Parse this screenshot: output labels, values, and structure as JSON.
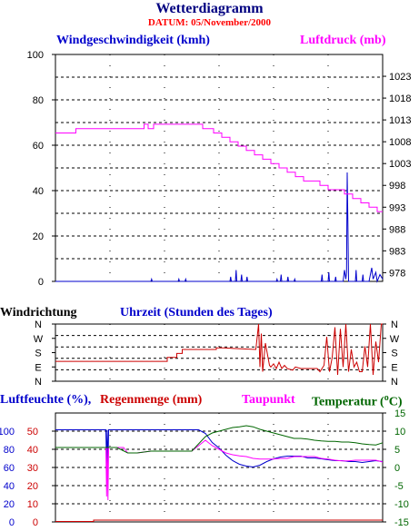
{
  "title": "Wetterdiagramm",
  "date_label": "DATUM: 05/November/2000",
  "chart_data": [
    {
      "type": "line",
      "name": "top",
      "left_label": "Windgeschwindigkeit (kmh)",
      "right_label": "Luftdruck (mb)",
      "left_ticks": [
        "100",
        "80",
        "60",
        "40",
        "20",
        "0"
      ],
      "right_ticks": [
        "1023",
        "1018",
        "1013",
        "1008",
        "1003",
        "998",
        "993",
        "988",
        "983",
        "978"
      ],
      "xlim": [
        0,
        24
      ],
      "ylim_left": [
        0,
        100
      ],
      "ylim_right": [
        976,
        1028
      ],
      "grid": true,
      "colors": {
        "left": "#0000cc",
        "right": "#ff00ff"
      },
      "series": [
        {
          "axis": "left",
          "color": "#0000cc",
          "x": [
            0,
            7,
            7.05,
            7.1,
            9,
            9.05,
            9.1,
            9.5,
            9.55,
            9.6,
            12.8,
            12.85,
            12.9,
            13.2,
            13.25,
            13.3,
            13.6,
            13.65,
            13.7,
            14,
            14.05,
            14.1,
            16.2,
            16.25,
            16.3,
            16.5,
            16.55,
            16.6,
            17,
            17.05,
            17.1,
            17.5,
            17.55,
            17.6,
            19.5,
            19.55,
            19.6,
            20,
            20.05,
            20.1,
            20.5,
            20.55,
            20.6,
            21.1,
            21.2,
            21.3,
            21.35,
            21.4,
            21.45,
            21.5,
            22,
            22.05,
            22.1,
            22.5,
            22.55,
            22.6,
            23,
            23.2,
            23.3,
            23.5,
            23.6,
            23.8,
            24
          ],
          "y": [
            0,
            0,
            1,
            0,
            0,
            1,
            0,
            0,
            1,
            0,
            0,
            2,
            0,
            0,
            5,
            0,
            0,
            3,
            0,
            0,
            2,
            0,
            0,
            1,
            0,
            0,
            3,
            0,
            0,
            2,
            0,
            0,
            1,
            0,
            0,
            3,
            0,
            0,
            4,
            0,
            0,
            2,
            0,
            0,
            5,
            1,
            4,
            48,
            25,
            0,
            0,
            5,
            0,
            0,
            3,
            0,
            0,
            6,
            1,
            4,
            0,
            3,
            1
          ]
        },
        {
          "axis": "right",
          "color": "#ff00ff",
          "x": [
            0,
            1.5,
            1.5,
            6.5,
            6.5,
            6.8,
            6.8,
            7.2,
            7.2,
            10.8,
            10.8,
            11.6,
            11.6,
            12.2,
            12.2,
            12.8,
            12.8,
            13.4,
            13.4,
            14,
            14,
            14.6,
            14.6,
            15.2,
            15.2,
            15.8,
            15.8,
            16.4,
            16.4,
            17,
            17,
            17.6,
            17.6,
            18.2,
            18.2,
            18.8,
            18.8,
            19.4,
            19.4,
            20,
            20,
            20.6,
            20.6,
            21.2,
            21.2,
            21.8,
            21.8,
            22.4,
            22.4,
            23,
            23,
            23.6,
            23.6,
            24
          ],
          "y": [
            1010,
            1010,
            1011,
            1011,
            1012,
            1012,
            1011,
            1011,
            1012,
            1012,
            1011,
            1011,
            1010,
            1010,
            1009,
            1009,
            1008,
            1008,
            1007,
            1007,
            1006,
            1006,
            1005,
            1005,
            1004,
            1004,
            1003,
            1003,
            1002,
            1002,
            1001,
            1001,
            1000,
            1000,
            999,
            999,
            999,
            999,
            998,
            998,
            997,
            997,
            997,
            997,
            996,
            996,
            995,
            995,
            994,
            994,
            993,
            993,
            992,
            992
          ]
        }
      ]
    },
    {
      "type": "line",
      "name": "middle",
      "left_label": "Windrichtung",
      "center_label": "Uhrzeit (Stunden des Tages)",
      "left_ticks": [
        "N",
        "W",
        "S",
        "E",
        "N"
      ],
      "right_ticks": [
        "N",
        "W",
        "S",
        "E",
        "N"
      ],
      "xlim": [
        0,
        24
      ],
      "ylim": [
        0,
        360
      ],
      "grid": true,
      "series": [
        {
          "color": "#cc0000",
          "x": [
            0,
            8.2,
            8.2,
            8.9,
            8.9,
            9.3,
            9.3,
            11.8,
            11.8,
            12.3,
            12.3,
            14.7,
            14.9,
            15.0,
            15.1,
            15.2,
            15.4,
            15.7,
            15.8,
            16.0,
            16.2,
            16.4,
            16.6,
            16.8,
            17.0,
            17.4,
            17.6,
            18.0,
            19.2,
            19.4,
            19.7,
            19.9,
            20.1,
            20.3,
            20.5,
            20.7,
            20.9,
            21.1,
            21.3,
            21.5,
            21.7,
            21.9,
            22.1,
            22.3,
            22.5,
            22.7,
            22.9,
            23.1,
            23.3,
            23.5,
            23.7,
            23.9,
            24
          ],
          "y": [
            125,
            125,
            150,
            150,
            175,
            175,
            200,
            200,
            210,
            210,
            210,
            200,
            360,
            90,
            300,
            60,
            240,
            100,
            90,
            110,
            80,
            120,
            80,
            100,
            80,
            70,
            90,
            80,
            80,
            60,
            100,
            280,
            60,
            150,
            340,
            40,
            330,
            90,
            360,
            60,
            200,
            90,
            120,
            60,
            60,
            220,
            90,
            360,
            40,
            250,
            120,
            360,
            360
          ]
        }
      ]
    },
    {
      "type": "line",
      "name": "bottom",
      "labels": [
        "Luftfeuchte (%),",
        "Regenmenge (mm)",
        "Taupunkt",
        "Temperatur (",
        "C)"
      ],
      "left_ticks_blue": [
        "100",
        "80",
        "60",
        "40",
        "20",
        "0"
      ],
      "left_ticks_red": [
        "50",
        "40",
        "30",
        "20",
        "10",
        "0"
      ],
      "right_ticks": [
        "15",
        "10",
        "5",
        "0",
        "-5",
        "-10",
        "-15"
      ],
      "xlim": [
        0,
        24
      ],
      "ylim_left": [
        0,
        100
      ],
      "ylim_right": [
        -15,
        15
      ],
      "grid": true,
      "colors": {
        "humidity": "#0000cc",
        "rain": "#cc0000",
        "dewpoint": "#ff00ff",
        "temperature": "#006600"
      },
      "series": [
        {
          "name": "Luftfeuchte (%)",
          "axis": "left",
          "color": "#0000cc",
          "x": [
            0,
            3.7,
            3.75,
            3.8,
            3.85,
            3.9,
            10,
            10.5,
            11,
            11.5,
            12,
            12.5,
            13,
            13.5,
            14,
            14.5,
            15,
            15.5,
            16,
            16.5,
            17,
            17.5,
            18,
            18.5,
            19,
            19.5,
            20,
            20.5,
            21,
            21.5,
            22,
            22.5,
            23,
            23.5,
            24
          ],
          "y": [
            99,
            99,
            60,
            99,
            55,
            99,
            99,
            99,
            95,
            85,
            79,
            71,
            65,
            61,
            59,
            58,
            60,
            64,
            67,
            69,
            70,
            70,
            70,
            68,
            68,
            67,
            66,
            65,
            65,
            64,
            64,
            63,
            64,
            65,
            64
          ]
        },
        {
          "name": "Regenmenge (mm)",
          "axis": "left",
          "color": "#cc0000",
          "x": [
            0,
            2.8,
            2.8,
            24
          ],
          "y": [
            0,
            0,
            0.3,
            0.3
          ]
        },
        {
          "name": "Taupunkt",
          "axis": "right",
          "color": "#ff00ff",
          "x": [
            0,
            3.7,
            3.75,
            3.8,
            3.85,
            3.9,
            5,
            5.3,
            6,
            7,
            8,
            9,
            10,
            10.5,
            11,
            11.5,
            12,
            12.5,
            13,
            13.5,
            14,
            14.5,
            15,
            15.5,
            16,
            16.5,
            17,
            17.5,
            18,
            18.5,
            19,
            19.5,
            20,
            20.5,
            21,
            21.5,
            22,
            22.5,
            23,
            23.5,
            24
          ],
          "y": [
            5.5,
            5.5,
            -8,
            5.5,
            -9,
            5.5,
            5.5,
            4,
            4,
            4.5,
            4.5,
            4.5,
            4.5,
            6,
            7.5,
            6,
            5,
            4,
            3.5,
            3.2,
            3,
            2.5,
            2.3,
            2.3,
            2.3,
            2.5,
            2.5,
            3,
            3,
            3,
            3,
            2.5,
            2.3,
            2,
            1.8,
            1.8,
            2,
            2,
            2,
            2,
            1.5
          ]
        },
        {
          "name": "Temperatur",
          "axis": "right",
          "color": "#006600",
          "x": [
            0,
            3.7,
            4.5,
            5.3,
            6,
            7,
            8,
            9,
            10,
            10.5,
            11,
            11.5,
            12,
            12.5,
            13,
            13.5,
            14,
            14.5,
            15,
            15.5,
            16,
            16.5,
            17,
            17.5,
            18,
            18.5,
            19,
            19.5,
            20,
            20.5,
            21,
            21.5,
            22,
            22.5,
            23,
            23.5,
            24
          ],
          "y": [
            5.5,
            5.5,
            5.5,
            4,
            4,
            4.5,
            4.5,
            4.5,
            4.5,
            6.5,
            8.5,
            9.5,
            10,
            10.5,
            11,
            11.2,
            11.5,
            11.2,
            10.5,
            10,
            9.5,
            9,
            8.5,
            8,
            8,
            7.8,
            7.5,
            7.3,
            7.2,
            7.2,
            7,
            7,
            6.8,
            6.5,
            6.3,
            6.2,
            6.8
          ]
        }
      ]
    }
  ]
}
